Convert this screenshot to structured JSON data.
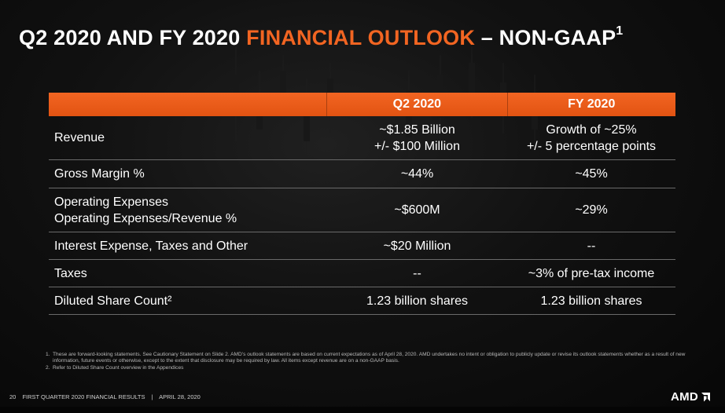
{
  "title": {
    "part1": "Q2 2020 AND FY 2020 ",
    "highlight": "FINANCIAL OUTLOOK",
    "part2": " – NON-GAAP",
    "sup": "1"
  },
  "table": {
    "columns": [
      "",
      "Q2 2020",
      "FY 2020"
    ],
    "rows": [
      {
        "label": [
          "Revenue"
        ],
        "q2": [
          "~$1.85 Billion",
          "+/- $100 Million"
        ],
        "fy": [
          "Growth of ~25%",
          "+/- 5 percentage points"
        ]
      },
      {
        "label": [
          "Gross Margin %"
        ],
        "q2": [
          "~44%"
        ],
        "fy": [
          "~45%"
        ]
      },
      {
        "label": [
          "Operating Expenses",
          "Operating Expenses/Revenue %"
        ],
        "q2": [
          "~$600M"
        ],
        "fy": [
          "~29%"
        ]
      },
      {
        "label": [
          "Interest Expense, Taxes and Other"
        ],
        "q2": [
          "~$20 Million"
        ],
        "fy": [
          "--"
        ]
      },
      {
        "label": [
          "Taxes"
        ],
        "q2": [
          "--"
        ],
        "fy": [
          "~3% of pre-tax income"
        ]
      },
      {
        "label": [
          "Diluted Share Count²"
        ],
        "q2": [
          "1.23 billion shares"
        ],
        "fy": [
          "1.23 billion shares"
        ]
      }
    ]
  },
  "footnotes": [
    {
      "num": "1.",
      "text": "These are forward-looking statements.  See Cautionary Statement on Slide 2. AMD’s outlook statements are based on current expectations as of April 28, 2020. AMD undertakes no intent or obligation to publicly update or revise its outlook statements whether as a result of new information, future events or otherwise, except to the extent that disclosure may be required by law.  All items except revenue are on a non-GAAP basis."
    },
    {
      "num": "2.",
      "text": "Refer to Diluted Share Count overview in the Appendices"
    }
  ],
  "footer": {
    "page": "20",
    "deck": "FIRST QUARTER 2020 FINANCIAL RESULTS",
    "divider": "|",
    "date": "APRIL 28, 2020"
  },
  "logo": {
    "text": "AMD",
    "icon": "amd-arrow-icon"
  },
  "colors": {
    "accent": "#f26522",
    "background": "#0c0c0c",
    "rule": "#6a6a6a"
  }
}
